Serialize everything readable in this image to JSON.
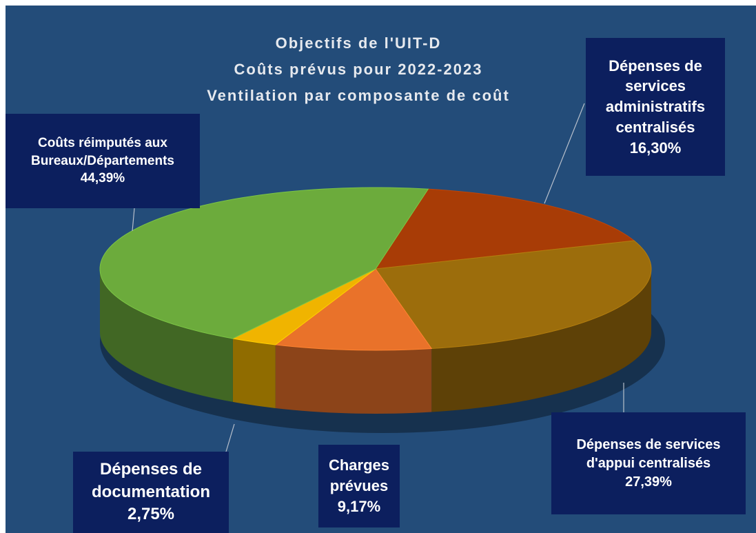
{
  "chart_data": {
    "type": "pie3d",
    "title": [
      "Objectifs de l'UIT-D",
      "Coûts prévus pour 2022-2023",
      "Ventilation par composante de coût"
    ],
    "categories": [
      "Dépenses de services administratifs centralisés",
      "Dépenses de services d'appui centralisés",
      "Charges prévues",
      "Dépenses de documentation",
      "Coûts réimputés aux Bureaux/Départements"
    ],
    "values": [
      16.3,
      27.39,
      9.17,
      2.75,
      44.39
    ],
    "value_labels": [
      "16,30%",
      "27,39%",
      "9,17%",
      "2,75%",
      "44,39%"
    ],
    "colors": [
      "#a83c06",
      "#9c6d0c",
      "#e9722a",
      "#f0b400",
      "#6cab3c"
    ]
  }
}
